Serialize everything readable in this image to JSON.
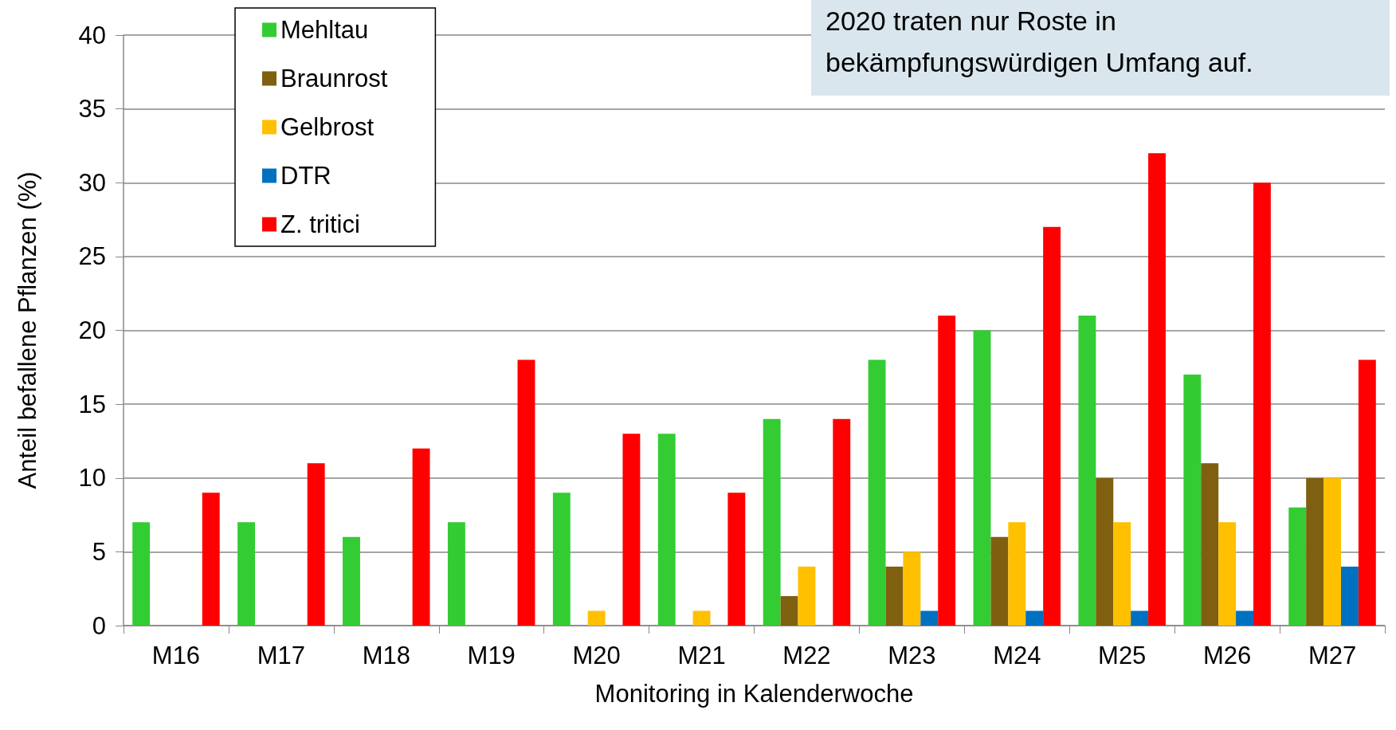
{
  "chart_data": {
    "type": "bar",
    "xlabel": "Monitoring in Kalenderwoche",
    "ylabel": "Anteil befallene Pflanzen (%)",
    "categories": [
      "M16",
      "M17",
      "M18",
      "M19",
      "M20",
      "M21",
      "M22",
      "M23",
      "M24",
      "M25",
      "M26",
      "M27"
    ],
    "series": [
      {
        "name": "Mehltau",
        "color": "#33cc33",
        "values": [
          7,
          7,
          6,
          7,
          9,
          13,
          14,
          18,
          20,
          21,
          17,
          8
        ]
      },
      {
        "name": "Braunrost",
        "color": "#7f5f10",
        "values": [
          0,
          0,
          0,
          0,
          0,
          0,
          2,
          4,
          6,
          10,
          11,
          10
        ]
      },
      {
        "name": "Gelbrost",
        "color": "#ffc000",
        "values": [
          0,
          0,
          0,
          0,
          1,
          1,
          4,
          5,
          7,
          7,
          7,
          10
        ]
      },
      {
        "name": "DTR",
        "color": "#0070c0",
        "values": [
          0,
          0,
          0,
          0,
          0,
          0,
          0,
          1,
          1,
          1,
          1,
          4
        ]
      },
      {
        "name": "Z. tritici",
        "color": "#ff0000",
        "values": [
          9,
          11,
          12,
          18,
          13,
          9,
          14,
          21,
          27,
          32,
          30,
          18
        ]
      }
    ],
    "ylim": [
      0,
      40
    ],
    "yticks": [
      0,
      5,
      10,
      15,
      20,
      25,
      30,
      35,
      40
    ],
    "grid": "y",
    "legend": "top left",
    "annotations": [
      "2020 traten nur Roste in bekämpfungswürdigen Umfang auf."
    ]
  }
}
